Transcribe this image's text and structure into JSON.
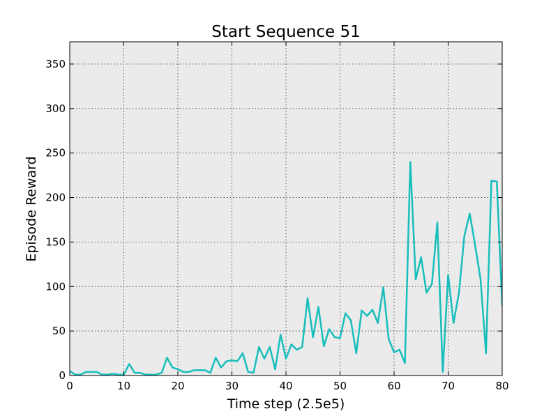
{
  "chart_data": {
    "type": "line",
    "title": "Start Sequence 51",
    "xlabel": "Time step (2.5e5)",
    "ylabel": "Episode Reward",
    "xlim": [
      0,
      80
    ],
    "ylim": [
      0,
      375
    ],
    "xticks": [
      0,
      10,
      20,
      30,
      40,
      50,
      60,
      70,
      80
    ],
    "yticks": [
      0,
      50,
      100,
      150,
      200,
      250,
      300,
      350
    ],
    "grid": true,
    "background": "#ebebeb",
    "series": [
      {
        "color": "#17bebb",
        "x": [
          0,
          1,
          2,
          3,
          4,
          5,
          6,
          7,
          8,
          9,
          10,
          11,
          12,
          13,
          14,
          15,
          16,
          17,
          18,
          19,
          20,
          21,
          22,
          23,
          24,
          25,
          26,
          27,
          28,
          29,
          30,
          31,
          32,
          33,
          34,
          35,
          36,
          37,
          38,
          39,
          40,
          41,
          42,
          43,
          44,
          45,
          46,
          47,
          48,
          49,
          50,
          51,
          52,
          53,
          54,
          55,
          56,
          57,
          58,
          59,
          60,
          61,
          62,
          63,
          64,
          65,
          66,
          67,
          68,
          69,
          70,
          71,
          72,
          73,
          74,
          75,
          76,
          77,
          78,
          79,
          80
        ],
        "values": [
          5,
          1,
          1,
          4,
          4,
          4,
          1,
          1,
          2,
          1,
          1,
          13,
          3,
          3,
          1,
          1,
          1,
          3,
          20,
          9,
          7,
          4,
          4,
          6,
          6,
          6,
          3,
          20,
          9,
          16,
          17,
          16,
          25,
          4,
          3,
          32,
          19,
          32,
          7,
          46,
          19,
          35,
          29,
          32,
          87,
          43,
          77,
          33,
          52,
          43,
          42,
          70,
          62,
          25,
          73,
          67,
          74,
          59,
          99,
          41,
          26,
          29,
          14,
          240,
          108,
          133,
          93,
          103,
          172,
          4,
          113,
          59,
          93,
          157,
          182,
          146,
          108,
          25,
          219,
          218,
          79
        ]
      }
    ]
  }
}
